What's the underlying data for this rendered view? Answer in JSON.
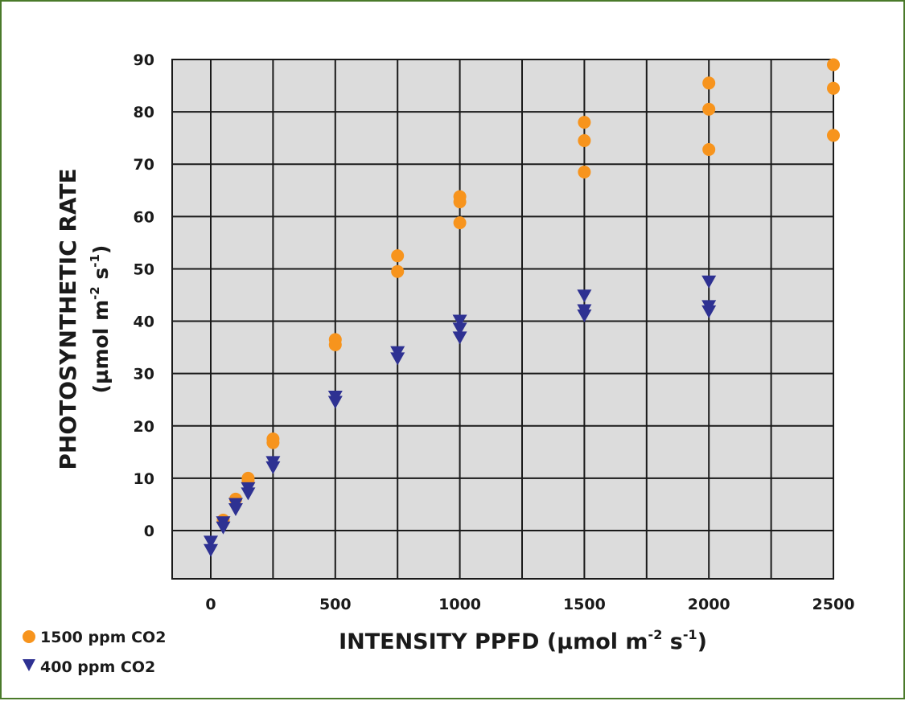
{
  "chart_data": {
    "type": "scatter",
    "xlabel": "INTENSITY PPFD (µmol m",
    "xlabel_sup1": "-2",
    "xlabel_mid": " s",
    "xlabel_sup2": "-1",
    "xlabel_end": ")",
    "ylabel_line1": "PHOTOSYNTHETIC RATE",
    "ylabel_line2": "(µmol m",
    "ylabel_sup1": "-2",
    "ylabel_mid": " s",
    "ylabel_sup2": "-1",
    "ylabel_end": ")",
    "xlim": [
      0,
      2500
    ],
    "ylim": [
      -9,
      90
    ],
    "x_ticks": [
      "0",
      "500",
      "1000",
      "1500",
      "2000",
      "2500"
    ],
    "x_tick_values": [
      0,
      500,
      1000,
      1500,
      2000,
      2500
    ],
    "y_ticks": [
      "0",
      "10",
      "20",
      "30",
      "40",
      "50",
      "60",
      "70",
      "80",
      "90"
    ],
    "y_tick_values": [
      0,
      10,
      20,
      30,
      40,
      50,
      60,
      70,
      80,
      90
    ],
    "grid": true,
    "legend_position": "bottom-left",
    "series": [
      {
        "name": "1500 ppm CO2",
        "marker": "circle",
        "color": "#f7941d",
        "points": [
          [
            50,
            2
          ],
          [
            100,
            6
          ],
          [
            150,
            10
          ],
          [
            150,
            9.5
          ],
          [
            250,
            17.5
          ],
          [
            250,
            16.8
          ],
          [
            500,
            36.5
          ],
          [
            500,
            35.5
          ],
          [
            750,
            52.5
          ],
          [
            750,
            49.5
          ],
          [
            1000,
            63.8
          ],
          [
            1000,
            62.8
          ],
          [
            1000,
            58.8
          ],
          [
            1500,
            78
          ],
          [
            1500,
            74.5
          ],
          [
            1500,
            68.5
          ],
          [
            2000,
            85.5
          ],
          [
            2000,
            80.5
          ],
          [
            2000,
            72.8
          ],
          [
            2500,
            89
          ],
          [
            2500,
            84.5
          ],
          [
            2500,
            75.5
          ]
        ]
      },
      {
        "name": "400 ppm CO2",
        "marker": "triangle-down",
        "color": "#2e3192",
        "points": [
          [
            0,
            -2.2
          ],
          [
            0,
            -3.8
          ],
          [
            50,
            1.5
          ],
          [
            50,
            0.5
          ],
          [
            100,
            5
          ],
          [
            100,
            4
          ],
          [
            150,
            8
          ],
          [
            150,
            7
          ],
          [
            250,
            13
          ],
          [
            250,
            12
          ],
          [
            500,
            25.5
          ],
          [
            500,
            24.5
          ],
          [
            750,
            34
          ],
          [
            750,
            32.8
          ],
          [
            1000,
            40
          ],
          [
            1000,
            38.5
          ],
          [
            1000,
            36.8
          ],
          [
            1500,
            44.8
          ],
          [
            1500,
            42
          ],
          [
            1500,
            41
          ],
          [
            2000,
            47.5
          ],
          [
            2000,
            42.8
          ],
          [
            2000,
            41.8
          ]
        ]
      }
    ]
  }
}
